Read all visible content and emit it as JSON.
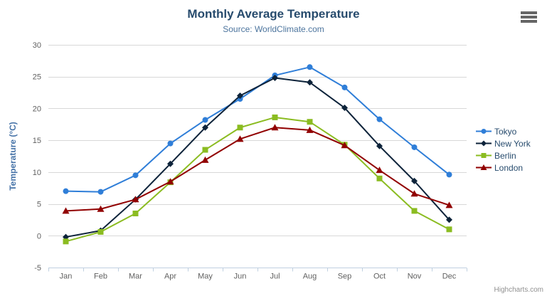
{
  "header": {
    "title": "Monthly Average Temperature",
    "subtitle": "Source: WorldClimate.com"
  },
  "credits": {
    "label": "Highcharts.com"
  },
  "colors": {
    "title": "#274b6d",
    "subtitle": "#4d759e",
    "axis_label": "#606060",
    "axis_line": "#c0d0e0",
    "gridline": "#d8d8d8",
    "yaxis_title": "#4572a7",
    "legend_text": "#274b6d",
    "credits_text": "#909090",
    "menu_icon": "#666666",
    "background": "#ffffff"
  },
  "chart_data": {
    "type": "line",
    "title": "Monthly Average Temperature",
    "subtitle": "Source: WorldClimate.com",
    "categories": [
      "Jan",
      "Feb",
      "Mar",
      "Apr",
      "May",
      "Jun",
      "Jul",
      "Aug",
      "Sep",
      "Oct",
      "Nov",
      "Dec"
    ],
    "xlabel": "",
    "ylabel": "Temperature (°C)",
    "ylim": [
      -5,
      30
    ],
    "yticks": [
      -5,
      0,
      5,
      10,
      15,
      20,
      25,
      30
    ],
    "grid": true,
    "legend_position": "right",
    "series": [
      {
        "name": "Tokyo",
        "color": "#2f7ed8",
        "marker": "circle",
        "values": [
          7.0,
          6.9,
          9.5,
          14.5,
          18.2,
          21.5,
          25.2,
          26.5,
          23.3,
          18.3,
          13.9,
          9.6
        ]
      },
      {
        "name": "New York",
        "color": "#0d233a",
        "marker": "diamond",
        "values": [
          -0.2,
          0.8,
          5.7,
          11.3,
          17.0,
          22.0,
          24.8,
          24.1,
          20.1,
          14.1,
          8.6,
          2.5
        ]
      },
      {
        "name": "Berlin",
        "color": "#8bbc21",
        "marker": "square",
        "values": [
          -0.9,
          0.6,
          3.5,
          8.4,
          13.5,
          17.0,
          18.6,
          17.9,
          14.3,
          9.0,
          3.9,
          1.0
        ]
      },
      {
        "name": "London",
        "color": "#910000",
        "marker": "triangle",
        "values": [
          3.9,
          4.2,
          5.7,
          8.5,
          11.9,
          15.2,
          17.0,
          16.6,
          14.2,
          10.3,
          6.6,
          4.8
        ]
      }
    ]
  }
}
